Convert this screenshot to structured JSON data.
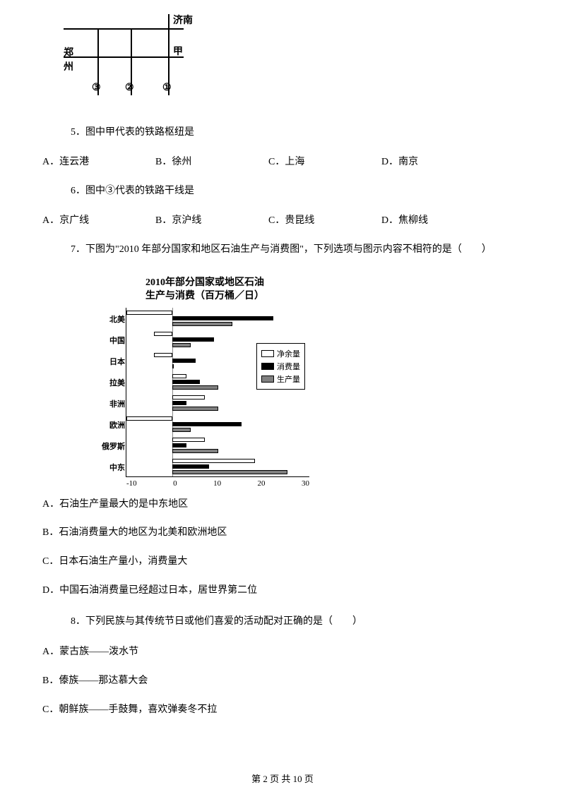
{
  "rail_diagram": {
    "labels": {
      "top": "济南",
      "left": "郑州",
      "mid": "甲"
    },
    "nums": [
      "③",
      "②",
      "①"
    ]
  },
  "q5": {
    "num": "5",
    "text": "．图中甲代表的铁路枢纽是",
    "opts": {
      "A": "A．连云港",
      "B": "B．徐州",
      "C": "C．上海",
      "D": "D．南京"
    }
  },
  "q6": {
    "num": "6",
    "text": "．图中③代表的铁路干线是",
    "opts": {
      "A": "A．京广线",
      "B": "B．京沪线",
      "C": "C．贵昆线",
      "D": "D．焦柳线"
    }
  },
  "q7": {
    "num": "7",
    "text": "．下图为\"2010 年部分国家和地区石油生产与消费图\"，下列选项与图示内容不相符的是（　　）"
  },
  "chart": {
    "title_l1": "2010年部分国家或地区石油",
    "title_l2": "生产与消费（百万桶／日）",
    "categories": [
      "北美",
      "中国",
      "日本",
      "拉美",
      "非洲",
      "欧洲",
      "俄罗斯",
      "中东"
    ],
    "surplus": [
      -10,
      -4,
      -4,
      3,
      7,
      -10,
      7,
      18
    ],
    "consumption": [
      22,
      9,
      5,
      6,
      3,
      15,
      3,
      8
    ],
    "production": [
      13,
      4,
      0,
      10,
      10,
      4,
      10,
      25
    ],
    "xlim": [
      -10,
      30
    ],
    "xtick_step": 10,
    "legend": {
      "sur": "净余量",
      "con": "消费量",
      "pro": "生产量"
    },
    "colors": {
      "sur": "#ffffff",
      "con": "#000000",
      "pro": "#808080",
      "border": "#000000"
    },
    "fontsize": 11
  },
  "q7_opts": {
    "A": "A．石油生产量最大的是中东地区",
    "B": "B．石油消费量大的地区为北美和欧洲地区",
    "C": "C．日本石油生产量小，消费量大",
    "D": "D．中国石油消费量已经超过日本，居世界第二位"
  },
  "q8": {
    "num": "8",
    "text": "．下列民族与其传统节日或他们喜爱的活动配对正确的是（　　）",
    "opts": {
      "A": "A．蒙古族——泼水节",
      "B": "B．傣族——那达慕大会",
      "C": "C．朝鲜族——手鼓舞，喜欢弹奏冬不拉"
    }
  },
  "footer": "第 2 页 共 10 页"
}
